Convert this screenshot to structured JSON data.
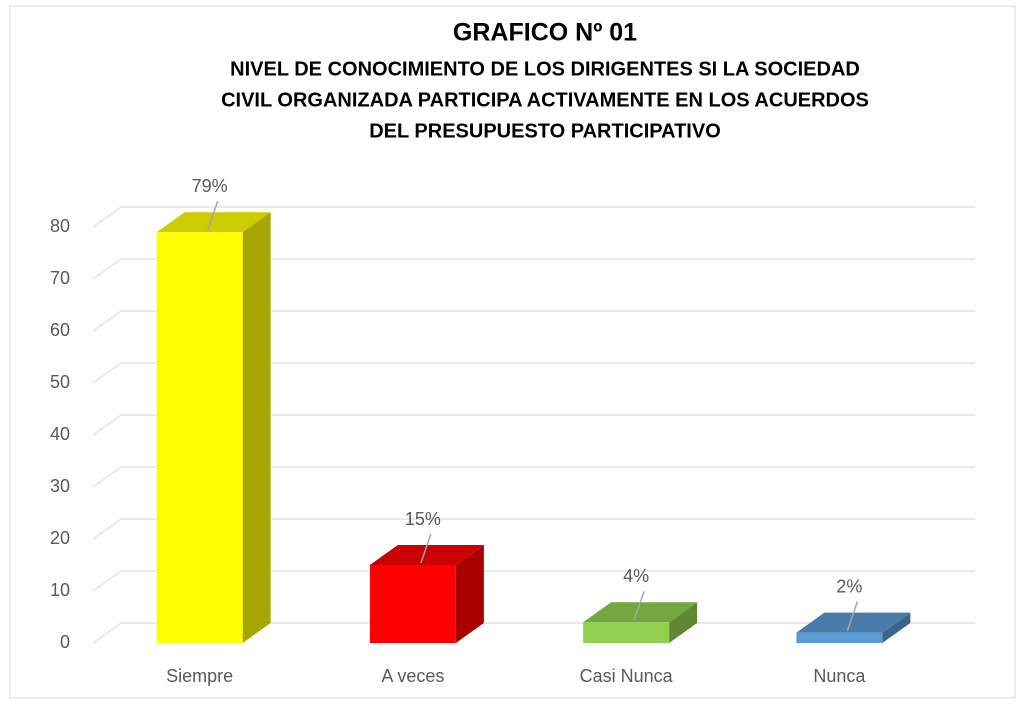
{
  "chart_data": {
    "type": "bar3d",
    "title": "GRAFICO Nº 01",
    "subtitle": [
      "NIVEL DE CONOCIMIENTO DE LOS DIRIGENTES SI LA SOCIEDAD",
      "CIVIL ORGANIZADA PARTICIPA ACTIVAMENTE EN LOS ACUERDOS",
      "DEL PRESUPUESTO PARTICIPATIVO"
    ],
    "categories": [
      "Siempre",
      "A veces",
      "Casi Nunca",
      "Nunca"
    ],
    "values": [
      79,
      15,
      4,
      2
    ],
    "value_labels": [
      "79%",
      "15%",
      "4%",
      "2%"
    ],
    "colors": [
      "#ffff00",
      "#ff0000",
      "#92d050",
      "#5b9bd5"
    ],
    "ylim": [
      0,
      80
    ],
    "yticks": [
      0,
      10,
      20,
      30,
      40,
      50,
      60,
      70,
      80
    ],
    "grid": true
  }
}
